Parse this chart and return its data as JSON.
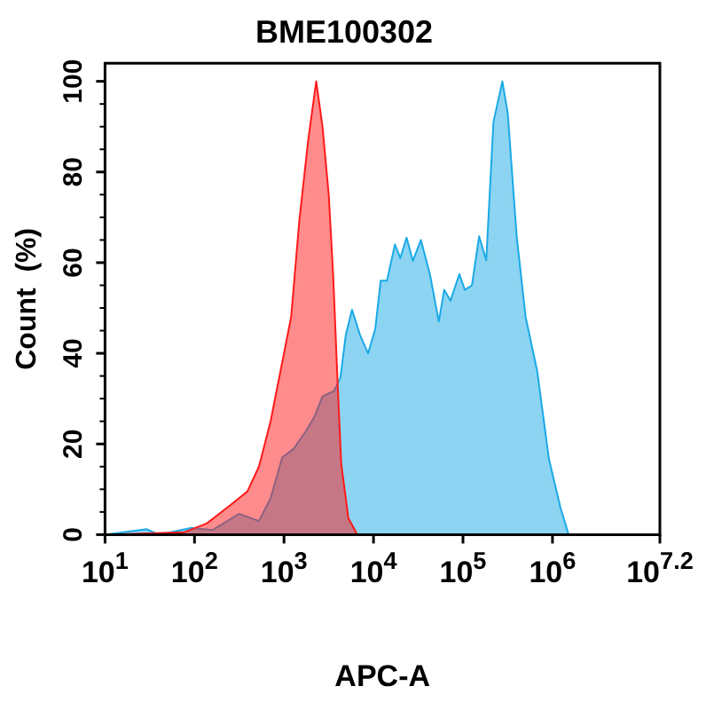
{
  "chart_data": {
    "type": "area",
    "title": "BME100302",
    "xlabel": "APC-A",
    "ylabel": "Count  (%)",
    "log": "x",
    "xlim": [
      10,
      15848932
    ],
    "xticks": [
      {
        "value": 10,
        "label": "10$^{1}$"
      },
      {
        "value": 100,
        "label": "10$^{2}$"
      },
      {
        "value": 1000,
        "label": "10$^{3}$"
      },
      {
        "value": 10000,
        "label": "10$^{4}$"
      },
      {
        "value": 100000,
        "label": "10$^{5}$"
      },
      {
        "value": 1000000,
        "label": "10$^{6}$"
      },
      {
        "value": 15848932,
        "label": "10$^{7.2}$"
      }
    ],
    "ylim": [
      0,
      104
    ],
    "yticks": [
      0,
      {
        "value": 5,
        "label": null
      },
      {
        "value": 10,
        "label": null
      },
      {
        "value": 15,
        "label": null
      },
      20,
      {
        "value": 25,
        "label": null
      },
      {
        "value": 30,
        "label": null
      },
      {
        "value": 35,
        "label": null
      },
      40,
      {
        "value": 45,
        "label": null
      },
      {
        "value": 50,
        "label": null
      },
      {
        "value": 55,
        "label": null
      },
      60,
      {
        "value": 65,
        "label": null
      },
      {
        "value": 70,
        "label": null
      },
      {
        "value": 75,
        "label": null
      },
      80,
      {
        "value": 85,
        "label": null
      },
      {
        "value": 90,
        "label": null
      },
      {
        "value": 95,
        "label": null
      },
      100
    ],
    "grid": false,
    "legend": false,
    "series": [
      {
        "color": "#1aa9e6",
        "x": [
          10,
          29,
          40,
          93,
          158,
          316,
          525,
          708,
          955,
          1288,
          1738,
          2188,
          2692,
          3631,
          4266,
          4898,
          5754,
          7079,
          8710,
          10470,
          12020,
          14130,
          17380,
          19950,
          23440,
          27540,
          33880,
          42660,
          53700,
          61660,
          72440,
          91200,
          104700,
          125900,
          151400,
          182000,
          218800,
          275400,
          316200,
          398100,
          501200,
          676100,
          912000,
          1230000,
          1514000
        ],
        "values": [
          0,
          1.2,
          0,
          1.5,
          1,
          4.6,
          3,
          8,
          17,
          19,
          22.7,
          26,
          30.5,
          31.7,
          34.6,
          44,
          49.6,
          44,
          40,
          45.4,
          56,
          56,
          64,
          61,
          65.5,
          60.4,
          65,
          57.5,
          47,
          54,
          51.6,
          57.5,
          54,
          55,
          65.8,
          60.5,
          91,
          100,
          93,
          65.8,
          48,
          36,
          16.7,
          5.9,
          0
        ]
      },
      {
        "color": "#ff1a1a",
        "x": [
          10,
          76,
          138,
          251,
          389,
          525,
          708,
          955,
          1202,
          1479,
          1862,
          2291,
          2692,
          3162,
          3548,
          3981,
          4365,
          5248,
          6607
        ],
        "values": [
          0,
          0.5,
          2.5,
          6.5,
          9.5,
          15,
          25,
          38,
          48,
          69,
          87,
          100,
          90,
          75,
          57,
          33,
          15.5,
          3.6,
          0
        ]
      }
    ]
  }
}
